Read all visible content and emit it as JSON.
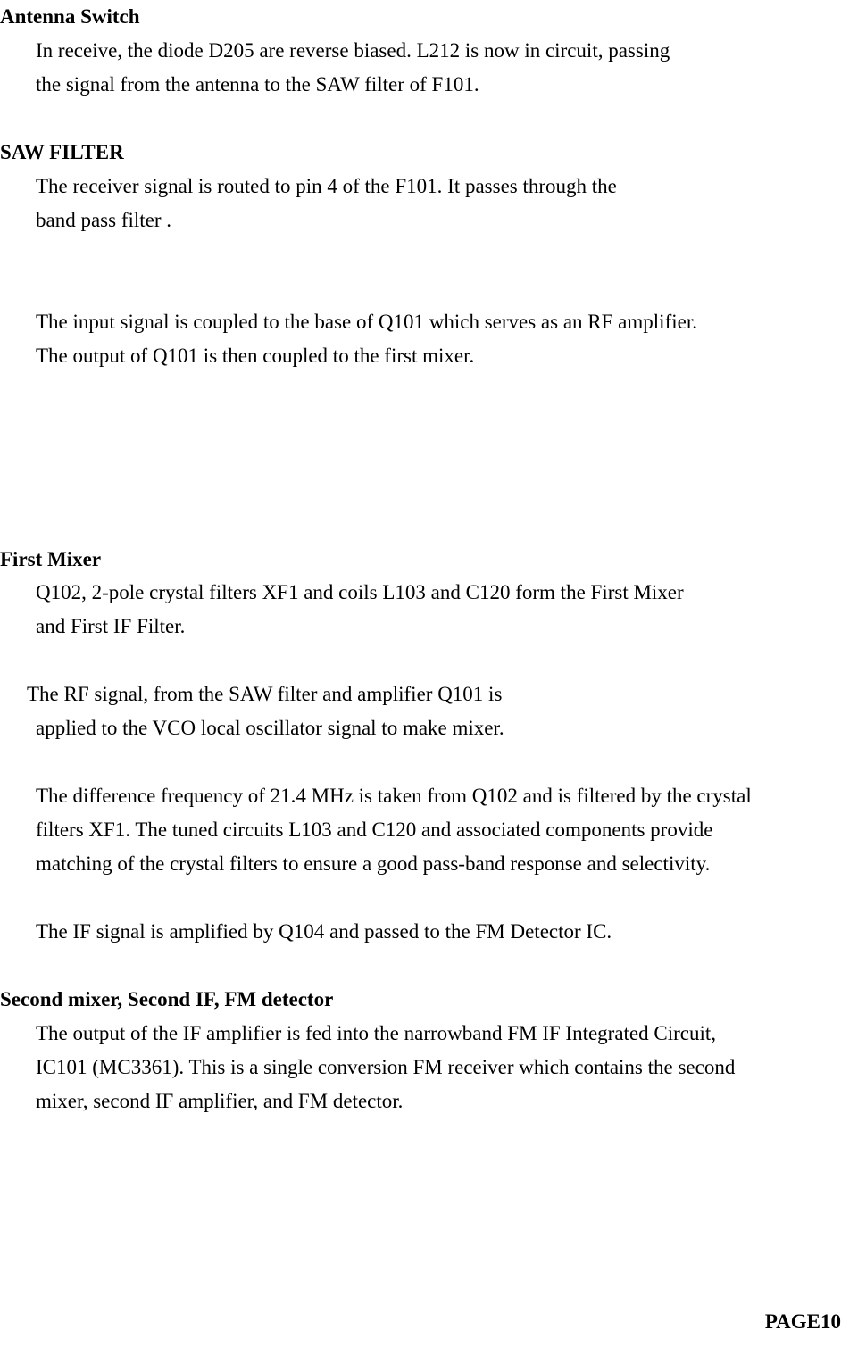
{
  "s1": {
    "heading": "Antenna Switch",
    "p1a": "In receive, the diode D205 are reverse biased. L212 is now in circuit, passing",
    "p1b": "the signal from the antenna to the SAW filter of F101."
  },
  "s2": {
    "heading": "SAW FILTER",
    "p1a": "The receiver signal is routed to pin 4 of the F101. It passes through the",
    "p1b": "band pass filter .",
    "p2a": "The input signal is coupled to the base of Q101 which serves as an RF amplifier.",
    "p2b": "The output of Q101 is then coupled to the first mixer."
  },
  "s3": {
    "heading": "First Mixer",
    "p1a": "Q102, 2-pole crystal filters XF1 and coils L103 and C120 form the First Mixer",
    "p1b": "and First IF Filter.",
    "p2a": "The RF signal, from the SAW filter and amplifier Q101 is",
    "p2b": "applied to the VCO local oscillator signal to make mixer.",
    "p3a": "The difference frequency of 21.4 MHz is taken from Q102 and is filtered by the crystal",
    "p3b": "filters XF1. The tuned circuits L103 and C120 and associated components provide",
    "p3c": "matching of the crystal filters to ensure a good pass-band response and selectivity.",
    "p4a": "The IF signal is amplified by Q104 and passed to the FM Detector IC."
  },
  "s4": {
    "heading": "Second mixer, Second IF, FM detector",
    "p1a": "The output of the IF amplifier is fed into the narrowband FM IF Integrated Circuit,",
    "p1b": "IC101 (MC3361). This is a single conversion FM receiver which contains the second",
    "p1c": "mixer, second IF amplifier, and FM detector."
  },
  "page_number": "PAGE10"
}
